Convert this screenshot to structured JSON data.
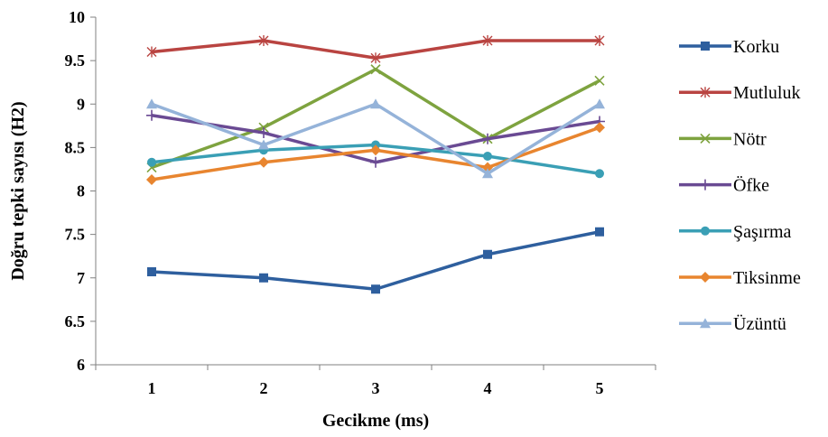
{
  "chart_data": {
    "type": "line",
    "title": "",
    "xlabel": "Gecikme (ms)",
    "ylabel": "Doğru tepki sayısı (H2)",
    "categories": [
      "1",
      "2",
      "3",
      "4",
      "5"
    ],
    "ylim": [
      6,
      10
    ],
    "yticks": [
      "6",
      "6.5",
      "7",
      "7.5",
      "8",
      "8.5",
      "9",
      "9.5",
      "10"
    ],
    "grid": false,
    "legend_position": "right",
    "series": [
      {
        "name": "Korku",
        "values": [
          7.07,
          7.0,
          6.87,
          7.27,
          7.53
        ],
        "color": "#2e5f9e",
        "marker": "square"
      },
      {
        "name": "Mutluluk",
        "values": [
          9.6,
          9.73,
          9.53,
          9.73,
          9.73
        ],
        "color": "#b94441",
        "marker": "star"
      },
      {
        "name": "Nötr",
        "values": [
          8.27,
          8.73,
          9.4,
          8.6,
          9.27
        ],
        "color": "#7ea33f",
        "marker": "x"
      },
      {
        "name": "Öfke",
        "values": [
          8.87,
          8.67,
          8.33,
          8.6,
          8.8
        ],
        "color": "#6a4a93",
        "marker": "plus"
      },
      {
        "name": "Şaşırma",
        "values": [
          8.33,
          8.47,
          8.53,
          8.4,
          8.2
        ],
        "color": "#3a9fb5",
        "marker": "circle"
      },
      {
        "name": "Tiksinme",
        "values": [
          8.13,
          8.33,
          8.47,
          8.27,
          8.73
        ],
        "color": "#e8852f",
        "marker": "diamond"
      },
      {
        "name": "Üzüntü",
        "values": [
          9.0,
          8.53,
          9.0,
          8.2,
          9.0
        ],
        "color": "#95b3d9",
        "marker": "triangle"
      }
    ]
  }
}
